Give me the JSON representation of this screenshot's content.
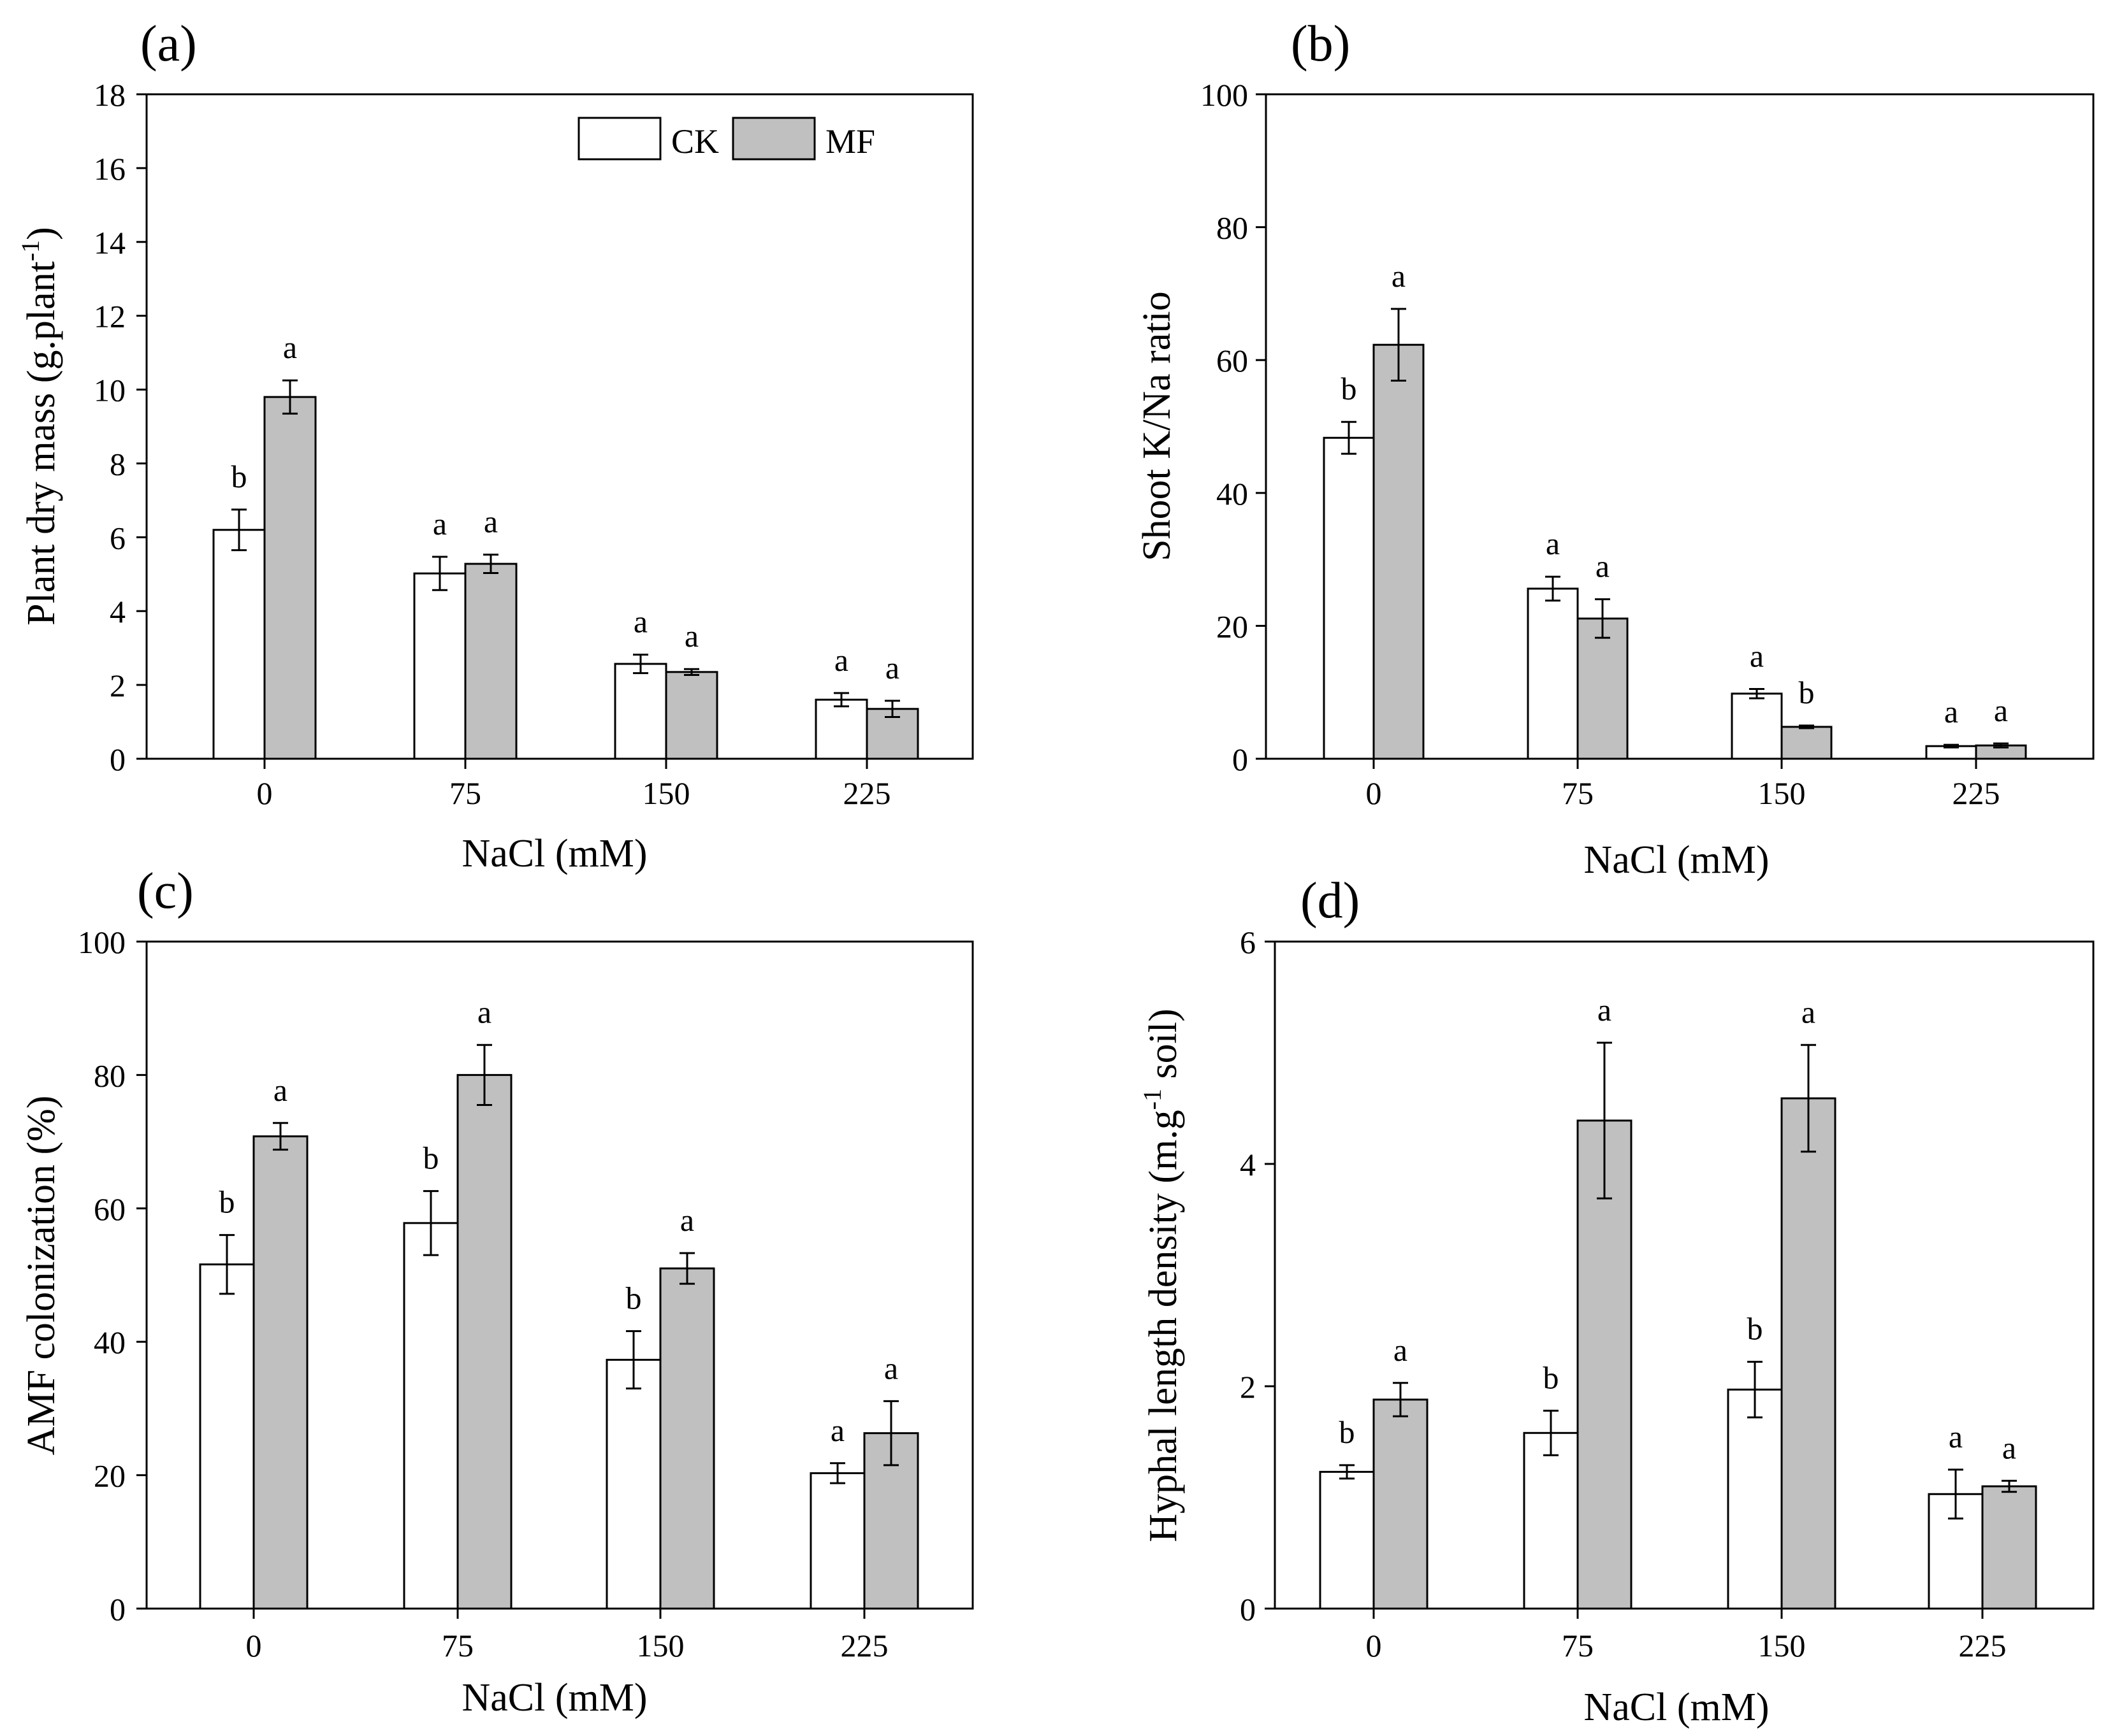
{
  "figure": {
    "legend": {
      "items": [
        "CK",
        "MF"
      ]
    },
    "colors": {
      "CK": "#ffffff",
      "MF": "#c0c0c0",
      "line": "#000000"
    }
  },
  "chart_data": [
    {
      "type": "bar",
      "panel_label": "(a)",
      "categories": [
        "0",
        "75",
        "150",
        "225"
      ],
      "xlabel": "NaCl (mM)",
      "ylabel": "Plant dry mass (g.plant",
      "ylabel_sup": "-1",
      "ylabel_tail": ")",
      "ylim": [
        0,
        18
      ],
      "yticks": [
        0,
        2,
        4,
        6,
        8,
        10,
        12,
        14,
        16,
        18
      ],
      "ytick_labels": [
        "0",
        "2",
        "4",
        "6",
        "8",
        "10",
        "12",
        "14",
        "16",
        "18"
      ],
      "legend": "top-right",
      "series": [
        {
          "name": "CK",
          "values": [
            6.2,
            5.02,
            2.57,
            1.6
          ],
          "errors": [
            0.55,
            0.45,
            0.25,
            0.18
          ],
          "letters": [
            "b",
            "a",
            "a",
            "a"
          ]
        },
        {
          "name": "MF",
          "values": [
            9.8,
            5.28,
            2.35,
            1.35
          ],
          "errors": [
            0.45,
            0.25,
            0.08,
            0.22
          ],
          "letters": [
            "a",
            "a",
            "a",
            "a"
          ]
        }
      ]
    },
    {
      "type": "bar",
      "panel_label": "(b)",
      "categories": [
        "0",
        "75",
        "150",
        "225"
      ],
      "xlabel": "NaCl (mM)",
      "ylabel": "Shoot K/Na ratio",
      "ylim": [
        0,
        100
      ],
      "yticks": [
        0,
        20,
        40,
        60,
        80,
        100
      ],
      "ytick_labels": [
        "0",
        "20",
        "40",
        "60",
        "80",
        "100"
      ],
      "series": [
        {
          "name": "CK",
          "values": [
            48.3,
            25.6,
            9.8,
            1.9
          ],
          "errors": [
            2.4,
            1.8,
            0.7,
            0.2
          ],
          "letters": [
            "b",
            "a",
            "a",
            "a"
          ]
        },
        {
          "name": "MF",
          "values": [
            62.3,
            21.1,
            4.8,
            2.0
          ],
          "errors": [
            5.4,
            2.9,
            0.2,
            0.3
          ],
          "letters": [
            "a",
            "a",
            "b",
            "a"
          ]
        }
      ]
    },
    {
      "type": "bar",
      "panel_label": "(c)",
      "categories": [
        "0",
        "75",
        "150",
        "225"
      ],
      "xlabel": "NaCl (mM)",
      "ylabel": "AMF colonization (%)",
      "ylim": [
        0,
        100
      ],
      "yticks": [
        0,
        20,
        40,
        60,
        80,
        100
      ],
      "ytick_labels": [
        "0",
        "20",
        "40",
        "60",
        "80",
        "100"
      ],
      "series": [
        {
          "name": "CK",
          "values": [
            51.6,
            57.8,
            37.3,
            20.3
          ],
          "errors": [
            4.4,
            4.8,
            4.3,
            1.5
          ],
          "letters": [
            "b",
            "b",
            "b",
            "a"
          ]
        },
        {
          "name": "MF",
          "values": [
            70.8,
            80.0,
            51.0,
            26.3
          ],
          "errors": [
            2.0,
            4.5,
            2.3,
            4.8
          ],
          "letters": [
            "a",
            "a",
            "a",
            "a"
          ]
        }
      ]
    },
    {
      "type": "bar",
      "panel_label": "(d)",
      "categories": [
        "0",
        "75",
        "150",
        "225"
      ],
      "xlabel": "NaCl (mM)",
      "ylabel": "Hyphal length density (m.g",
      "ylabel_sup": "-1",
      "ylabel_tail": " soil)",
      "ylim": [
        0,
        6
      ],
      "yticks": [
        0,
        2,
        4,
        6
      ],
      "ytick_labels": [
        "0",
        "2",
        "4",
        "6"
      ],
      "series": [
        {
          "name": "CK",
          "values": [
            1.23,
            1.58,
            1.97,
            1.03
          ],
          "errors": [
            0.06,
            0.2,
            0.25,
            0.22
          ],
          "letters": [
            "b",
            "b",
            "b",
            "a"
          ]
        },
        {
          "name": "MF",
          "values": [
            1.88,
            4.39,
            4.59,
            1.1
          ],
          "errors": [
            0.15,
            0.7,
            0.48,
            0.05
          ],
          "letters": [
            "a",
            "a",
            "a",
            "a"
          ]
        }
      ]
    }
  ]
}
